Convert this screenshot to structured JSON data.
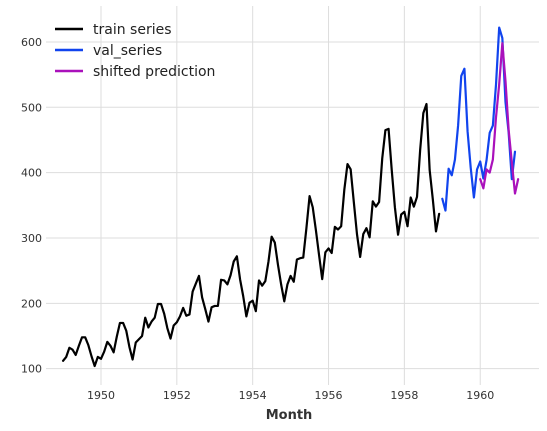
{
  "chart_data": {
    "type": "line",
    "title": "",
    "xlabel": "Month",
    "ylabel": "",
    "xlim": [
      1948.55,
      1961.55
    ],
    "ylim": [
      75,
      655
    ],
    "xticks": [
      1950,
      1952,
      1954,
      1956,
      1958,
      1960
    ],
    "yticks": [
      100,
      200,
      300,
      400,
      500,
      600
    ],
    "grid": true,
    "legend_position": "top-left",
    "colors": {
      "train": "#000000",
      "val": "#1144ee",
      "shifted": "#aa11bb"
    },
    "series": [
      {
        "name": "train series",
        "x_start": 1949.0,
        "x_step": 0.0833333,
        "values": [
          112,
          118,
          132,
          129,
          121,
          135,
          148,
          148,
          136,
          119,
          104,
          118,
          115,
          126,
          141,
          135,
          125,
          149,
          170,
          170,
          158,
          133,
          114,
          140,
          145,
          150,
          178,
          163,
          172,
          178,
          199,
          199,
          184,
          162,
          146,
          166,
          171,
          180,
          193,
          181,
          183,
          218,
          230,
          242,
          209,
          191,
          172,
          194,
          196,
          196,
          236,
          235,
          229,
          243,
          264,
          272,
          237,
          211,
          180,
          201,
          204,
          188,
          235,
          227,
          234,
          264,
          302,
          293,
          259,
          229,
          203,
          229,
          242,
          233,
          267,
          269,
          270,
          315,
          364,
          347,
          312,
          274,
          237,
          278,
          284,
          277,
          317,
          313,
          318,
          374,
          413,
          405,
          355,
          306,
          271,
          306,
          315,
          301,
          356,
          348,
          355,
          422,
          465,
          467,
          404,
          347,
          305,
          336,
          340,
          318,
          362,
          348,
          363,
          435,
          491,
          505,
          404,
          359,
          310,
          337
        ]
      },
      {
        "name": "val_series",
        "x_start": 1959.0,
        "x_step": 0.0833333,
        "values": [
          360,
          342,
          406,
          396,
          420,
          472,
          548,
          559,
          463,
          407,
          362,
          405,
          417,
          391,
          419,
          461,
          472,
          535,
          622,
          606,
          508,
          461,
          390,
          432
        ]
      },
      {
        "name": "shifted prediction",
        "x_start": 1960.0,
        "x_step": 0.0833333,
        "values": [
          390,
          376,
          405,
          400,
          420,
          485,
          535,
          598,
          540,
          465,
          416,
          368,
          390
        ]
      }
    ]
  }
}
